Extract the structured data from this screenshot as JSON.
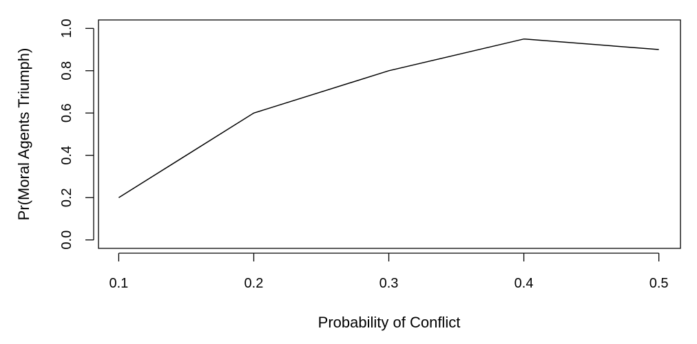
{
  "chart_data": {
    "type": "line",
    "title": "",
    "xlabel": "Probability of Conflict",
    "ylabel": "Pr(Moral Agents Triumph)",
    "x": [
      0.1,
      0.2,
      0.3,
      0.4,
      0.5
    ],
    "series": [
      {
        "values": [
          0.2,
          0.6,
          0.8,
          0.95,
          0.9
        ]
      }
    ],
    "xlim": [
      0.085,
      0.516
    ],
    "ylim": [
      -0.04,
      1.04
    ],
    "xticks": [
      "0.1",
      "0.2",
      "0.3",
      "0.4",
      "0.5"
    ],
    "yticks": [
      "0.0",
      "0.2",
      "0.4",
      "0.6",
      "0.8",
      "1.0"
    ],
    "grid": false,
    "legend": "none",
    "line_color": "#000000"
  }
}
